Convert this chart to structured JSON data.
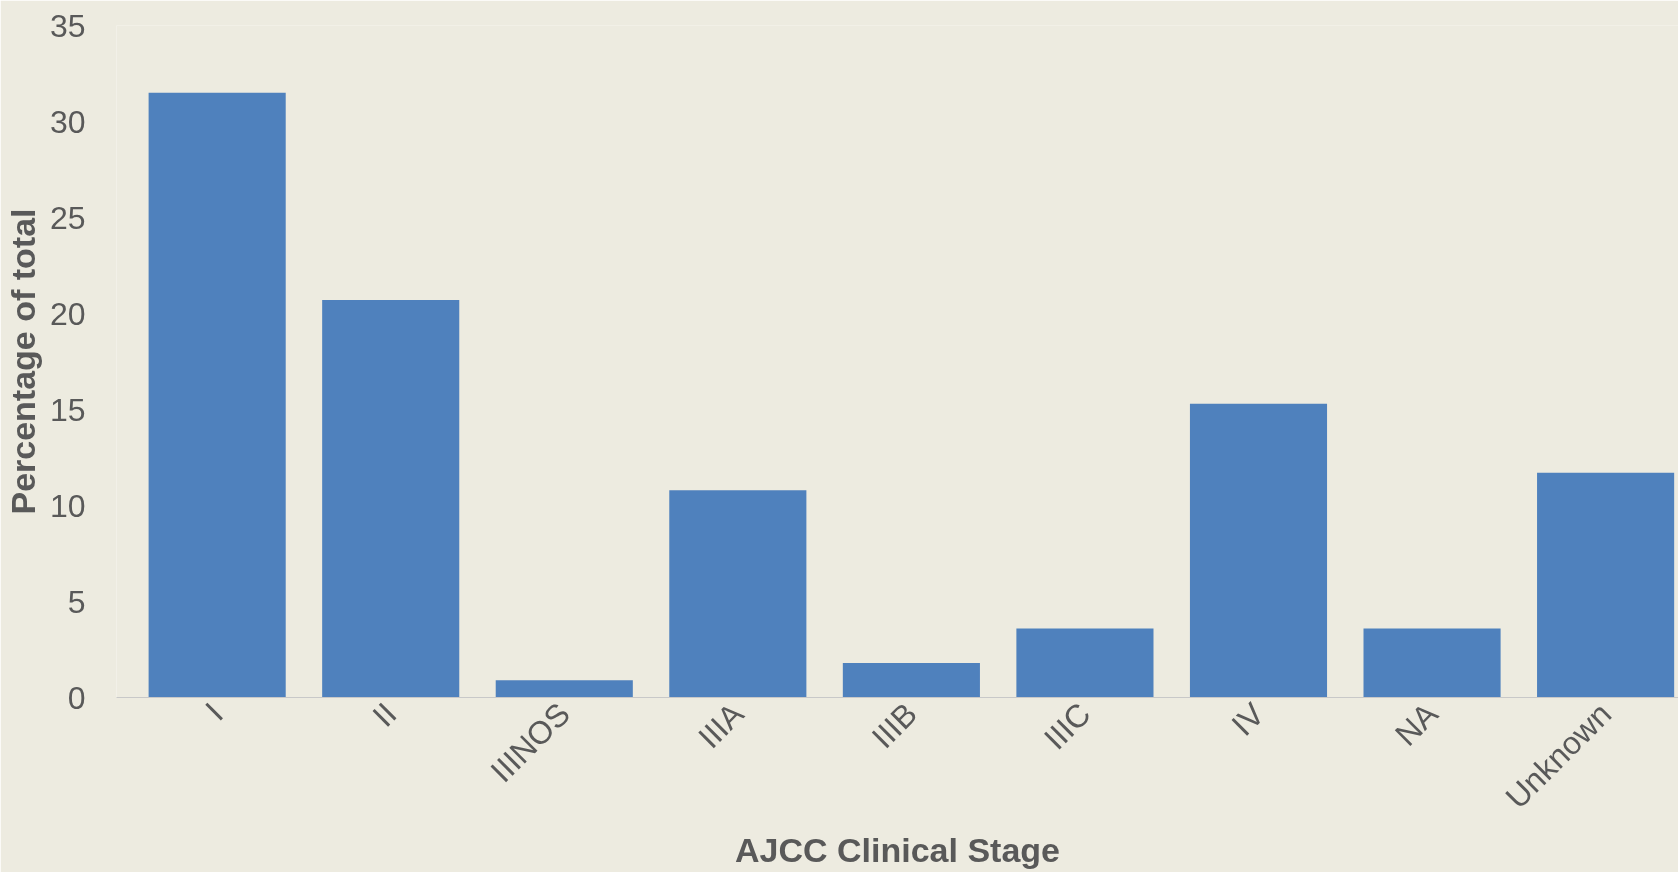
{
  "chart_data": {
    "type": "bar",
    "xlabel": "AJCC Clinical Stage",
    "ylabel": "Percentage of total",
    "categories": [
      "I",
      "II",
      "IIINOS",
      "IIIA",
      "IIIB",
      "IIIC",
      "IV",
      "NA",
      "Unknown"
    ],
    "values": [
      31.5,
      20.7,
      0.9,
      10.8,
      1.8,
      3.6,
      15.3,
      3.6,
      11.7
    ],
    "color": "#4f81bd",
    "ylim": [
      0,
      35
    ],
    "yticks": [
      0,
      5,
      10,
      15,
      20,
      25,
      30,
      35
    ],
    "grid": false
  }
}
